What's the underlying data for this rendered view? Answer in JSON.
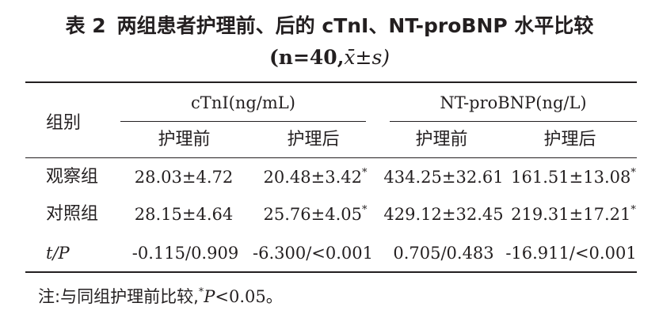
{
  "title": {
    "table_no": "表 2",
    "text": "两组患者护理前、后的 cTnI、NT-proBNP 水平比较",
    "sub_n": "(n=40,",
    "sub_stat": "x̄±s)"
  },
  "header": {
    "group": "组别",
    "ctni": "cTnI(ng/mL)",
    "ntprobnp": "NT-proBNP(ng/L)",
    "before": "护理前",
    "after": "护理后"
  },
  "rows": [
    {
      "group": "观察组",
      "ctni_before": "28.03±4.72",
      "ctni_after": "20.48±3.42",
      "ctni_after_mark": "*",
      "nt_before": "434.25±32.61",
      "nt_after": "161.51±13.08",
      "nt_after_mark": "*"
    },
    {
      "group": "对照组",
      "ctni_before": "28.15±4.64",
      "ctni_after": "25.76±4.05",
      "ctni_after_mark": "*",
      "nt_before": "429.12±32.45",
      "nt_after": "219.31±17.21",
      "nt_after_mark": "*"
    },
    {
      "group": "t/P",
      "ctni_before": "-0.115/0.909",
      "ctni_after": "-6.300/<0.001",
      "nt_before": "0.705/0.483",
      "nt_after": "-16.911/<0.001"
    }
  ],
  "note": {
    "prefix": "注:与同组护理前比较,",
    "mark": "*",
    "stat": "P",
    "suffix": "<0.05。"
  }
}
